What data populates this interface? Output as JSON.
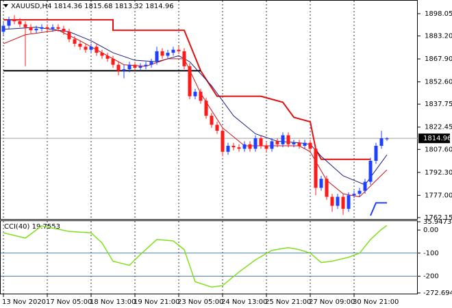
{
  "chart_data": [
    {
      "type": "candlestick",
      "title": "XAUUSD,H4  1814.36 1815.68 1813.32 1814.96",
      "categories": [
        "13 Nov 2020",
        null,
        null,
        null,
        null,
        null,
        null,
        null,
        "17 Nov 05:00",
        null,
        null,
        null,
        null,
        null,
        null,
        null,
        "18 Nov 13:00",
        null,
        null,
        null,
        null,
        null,
        null,
        null,
        "19 Nov 21:00",
        null,
        null,
        null,
        null,
        null,
        null,
        null,
        "23 Nov 05:00",
        null,
        null,
        null,
        null,
        null,
        null,
        null,
        "24 Nov 13:00",
        null,
        null,
        null,
        null,
        null,
        null,
        null,
        "25 Nov 21:00",
        null,
        null,
        null,
        null,
        null,
        null,
        null,
        "27 Nov 09:00",
        null,
        null,
        null,
        null,
        null,
        null,
        null,
        "30 Nov 21:00",
        null,
        null,
        null,
        null,
        null,
        null
      ],
      "open": [
        1886,
        1890,
        1894,
        1893,
        1891,
        1889,
        1887,
        1888,
        1889,
        1888,
        1889,
        1888,
        1886,
        1881,
        1878,
        1876,
        1874,
        1876,
        1872,
        1870,
        1868,
        1864,
        1860,
        1861,
        1864,
        1862,
        1863,
        1864,
        1866,
        1873,
        1870,
        1872,
        1874,
        1873,
        1863,
        1843,
        1846,
        1840,
        1830,
        1824,
        1820,
        1806,
        1810,
        1809,
        1808,
        1811,
        1808,
        1815,
        1810,
        1808,
        1813,
        1811,
        1817,
        1811,
        1812,
        1810,
        1812,
        1808,
        1782,
        1788,
        1776,
        1770,
        1776,
        1768,
        1777,
        1778,
        1780,
        1786,
        1800,
        1810,
        1814.36
      ],
      "high": [
        1892,
        1896,
        1897,
        1895,
        1893,
        1891,
        1890,
        1891,
        1891,
        1891,
        1891,
        1890,
        1888,
        1883,
        1880,
        1878,
        1878,
        1878,
        1874,
        1872,
        1870,
        1866,
        1864,
        1866,
        1866,
        1865,
        1866,
        1868,
        1876,
        1875,
        1874,
        1876,
        1876,
        1875,
        1865,
        1848,
        1848,
        1842,
        1832,
        1826,
        1822,
        1812,
        1812,
        1811,
        1813,
        1813,
        1817,
        1817,
        1812,
        1815,
        1815,
        1819,
        1819,
        1814,
        1814,
        1814,
        1814,
        1810,
        1790,
        1790,
        1778,
        1778,
        1778,
        1779,
        1780,
        1782,
        1788,
        1802,
        1812,
        1820,
        1815.68
      ],
      "low": [
        1884,
        1888,
        1891,
        1889,
        1863,
        1885,
        1885,
        1886,
        1886,
        1886,
        1886,
        1884,
        1879,
        1876,
        1874,
        1872,
        1872,
        1870,
        1868,
        1866,
        1862,
        1857,
        1855,
        1859,
        1860,
        1860,
        1861,
        1862,
        1864,
        1868,
        1868,
        1870,
        1871,
        1861,
        1841,
        1841,
        1838,
        1828,
        1822,
        1818,
        1803,
        1804,
        1807,
        1806,
        1806,
        1806,
        1806,
        1808,
        1806,
        1806,
        1809,
        1809,
        1809,
        1809,
        1808,
        1808,
        1806,
        1777,
        1780,
        1774,
        1766,
        1768,
        1764,
        1766,
        1775,
        1776,
        1778,
        1784,
        1798,
        1808,
        1813.32
      ],
      "close": [
        1890,
        1894,
        1893,
        1891,
        1889,
        1887,
        1888,
        1889,
        1888,
        1889,
        1888,
        1886,
        1881,
        1878,
        1876,
        1874,
        1876,
        1872,
        1870,
        1868,
        1864,
        1860,
        1861,
        1864,
        1862,
        1863,
        1864,
        1866,
        1873,
        1870,
        1872,
        1874,
        1873,
        1863,
        1843,
        1846,
        1840,
        1830,
        1824,
        1820,
        1806,
        1810,
        1809,
        1808,
        1811,
        1808,
        1815,
        1810,
        1808,
        1813,
        1811,
        1817,
        1811,
        1812,
        1810,
        1812,
        1808,
        1782,
        1788,
        1776,
        1770,
        1776,
        1768,
        1777,
        1778,
        1780,
        1786,
        1800,
        1810,
        1815,
        1814.96
      ],
      "up_color": "#1f3fff",
      "down_color": "#ff1a1a",
      "overlays": [
        {
          "color": "#e01010",
          "width": 2,
          "x": [
            0,
            20,
            20,
            33,
            36,
            39,
            47,
            51,
            53,
            56,
            57,
            58,
            67
          ],
          "values": [
            1894,
            1894,
            1887,
            1887,
            1860,
            1843,
            1843,
            1839,
            1829,
            1826,
            1808,
            1801,
            1801
          ]
        },
        {
          "color": "#000000",
          "width": 2,
          "x": [
            0,
            36
          ],
          "values": [
            1860,
            1860
          ]
        },
        {
          "color": "#1a1a80",
          "width": 1,
          "x": [
            0,
            6,
            12,
            16,
            20,
            24,
            28,
            32,
            34,
            38,
            42,
            46,
            50,
            54,
            56,
            58,
            62,
            66,
            70
          ],
          "values": [
            1887.6,
            1889,
            1886,
            1880,
            1872,
            1867,
            1866,
            1870,
            1866,
            1850,
            1830,
            1818,
            1813,
            1812,
            1811,
            1803,
            1790,
            1784,
            1804
          ]
        },
        {
          "color": "#cc1010",
          "width": 1,
          "x": [
            0,
            4,
            10,
            14,
            18,
            22,
            26,
            30,
            33,
            36,
            40,
            44,
            50,
            54,
            56,
            59,
            62,
            65,
            70
          ],
          "values": [
            1878,
            1884,
            1887,
            1880,
            1872,
            1864,
            1863,
            1868,
            1868,
            1845,
            1822,
            1810,
            1810,
            1810,
            1806,
            1787,
            1778,
            1776,
            1794
          ]
        },
        {
          "color": "#1f3fff",
          "width": 2,
          "x": [
            67,
            68,
            70
          ],
          "values": [
            1763.5,
            1772,
            1772
          ]
        }
      ],
      "last_price": {
        "value": 1814.96,
        "label": "1814.96"
      },
      "ylim": [
        1761.2,
        1906.7
      ],
      "yticks": [
        {
          "value": 1898.05,
          "label": "1898.05"
        },
        {
          "value": 1883.2,
          "label": "1883.20"
        },
        {
          "value": 1867.9,
          "label": "1867.90"
        },
        {
          "value": 1852.6,
          "label": "1852.60"
        },
        {
          "value": 1837.75,
          "label": "1837.75"
        },
        {
          "value": 1822.45,
          "label": "1822.45"
        },
        {
          "value": 1807.6,
          "label": "1807.60"
        },
        {
          "value": 1792.3,
          "label": "1792.30"
        },
        {
          "value": 1777,
          "label": "1777.00"
        },
        {
          "value": 1762.15,
          "label": "1762.15"
        }
      ],
      "grid": true
    },
    {
      "type": "line",
      "title": "CCI(40) 19.7553",
      "color": "#7fe01a",
      "x": [
        0,
        4,
        7,
        12,
        16,
        18,
        20,
        23,
        25,
        28,
        31,
        33,
        35,
        38,
        40,
        43,
        46,
        49,
        52,
        54,
        56,
        58,
        60,
        63,
        65,
        67,
        69,
        70
      ],
      "values": [
        -12,
        -35,
        18,
        -6,
        -12,
        -56,
        -135,
        -153,
        -106,
        -41,
        -47,
        -85,
        -224,
        -247,
        -241,
        -182,
        -129,
        -88,
        -76,
        -85,
        -100,
        -141,
        -135,
        -118,
        -100,
        -41,
        3,
        19.7553
      ],
      "ylim": [
        -272.694,
        35.9473
      ],
      "yticks": [
        35.9473,
        {
          "value": 0,
          "label": "0.00"
        },
        -100,
        -200,
        -272.694
      ],
      "levels": [
        -100,
        -200
      ],
      "level_color": "#4682b4"
    }
  ]
}
